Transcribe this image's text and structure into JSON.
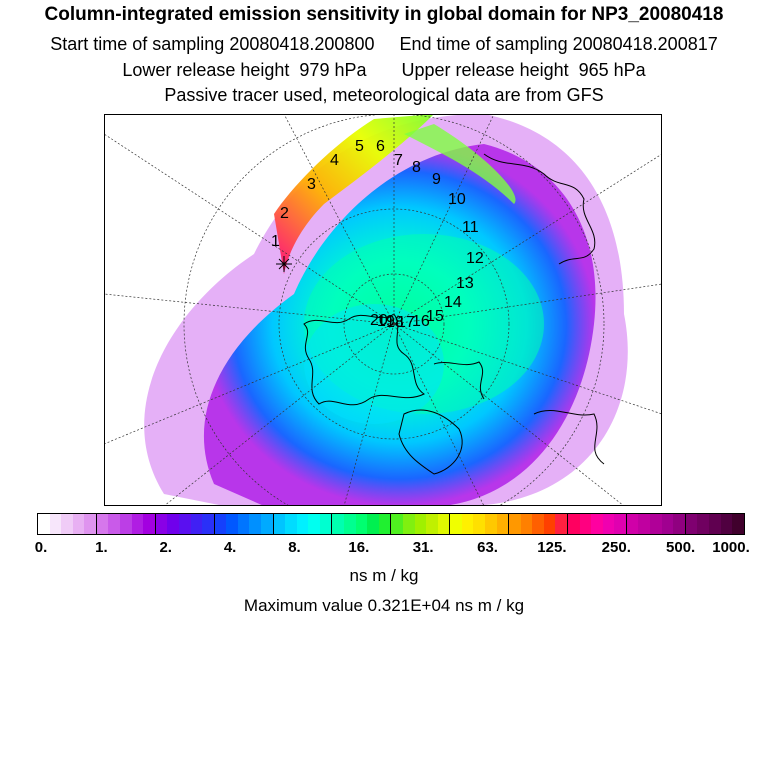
{
  "title": "Column-integrated emission sensitivity in global domain for NP3_20080418",
  "header": {
    "start_label": "Start time of sampling 20080418.200800",
    "end_label": "End time of sampling 20080418.200817",
    "lower_label": "Lower release height  979 hPa",
    "upper_label": "Upper release height  965 hPa",
    "tracer_note": "Passive tracer used, meteorological data are from GFS"
  },
  "trajectory_labels": [
    "1",
    "2",
    "3",
    "4",
    "5",
    "6",
    "7",
    "8",
    "9",
    "10",
    "11",
    "12",
    "13",
    "14",
    "15",
    "16",
    "17",
    "18",
    "19",
    "20"
  ],
  "colorbar": {
    "tick_labels": [
      "0.",
      "1.",
      "2.",
      "4.",
      "8.",
      "16.",
      "31.",
      "63.",
      "125.",
      "250.",
      "500.",
      "1000."
    ],
    "colors": [
      "#ffffff",
      "#f7e6fb",
      "#f0ccf7",
      "#e8b0f3",
      "#df94ef",
      "#d677ec",
      "#c95ae9",
      "#bc3ee6",
      "#b01de3",
      "#a300e0",
      "#8a00e6",
      "#7000ec",
      "#5a10f0",
      "#4020f4",
      "#2a30f8",
      "#1540fc",
      "#0058ff",
      "#0075ff",
      "#0090ff",
      "#00aaff",
      "#00c4ff",
      "#00dcff",
      "#00f0ff",
      "#00fff0",
      "#00ffd0",
      "#00ffb0",
      "#00ff90",
      "#00ff70",
      "#00f050",
      "#20f030",
      "#50f020",
      "#80f010",
      "#a0f000",
      "#c0f000",
      "#e0f800",
      "#f0ff00",
      "#fff000",
      "#ffe000",
      "#ffc800",
      "#ffb000",
      "#ff9800",
      "#ff8000",
      "#ff6000",
      "#ff4000",
      "#ff2040",
      "#ff0060",
      "#ff0080",
      "#ff00a0",
      "#f000b0",
      "#e000b0",
      "#d000a8",
      "#c000a0",
      "#b00098",
      "#a00090",
      "#900080",
      "#7f0070",
      "#700060",
      "#600050",
      "#500040",
      "#40002c"
    ],
    "unit": "ns m / kg",
    "max_value": "Maximum value  0.321E+04 ns m / kg"
  },
  "colors": {
    "border": "#000000",
    "grid": "#333333"
  }
}
